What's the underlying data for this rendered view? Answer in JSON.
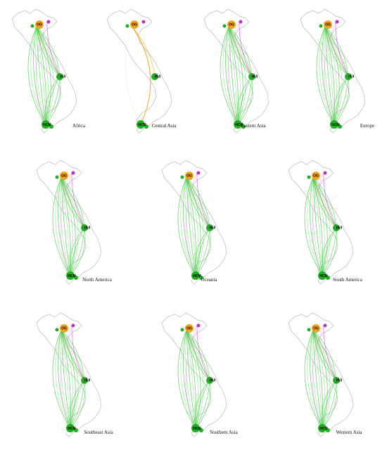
{
  "figure": {
    "panels": [
      {
        "region": "Africa",
        "style": "green"
      },
      {
        "region": "Central Asia",
        "style": "orange"
      },
      {
        "region": "Eastern Asia",
        "style": "green"
      },
      {
        "region": "Europe",
        "style": "green"
      },
      {
        "region": "North America",
        "style": "green"
      },
      {
        "region": "Oceania",
        "style": "green"
      },
      {
        "region": "South America",
        "style": "green"
      },
      {
        "region": "Southeast Asia",
        "style": "green"
      },
      {
        "region": "Southern Asia",
        "style": "green"
      },
      {
        "region": "Western Asia",
        "style": "green"
      }
    ],
    "node_labels": {
      "north": "OG",
      "central": "HUI",
      "south": "HCM"
    },
    "colors": {
      "outline": "#b8b8b8",
      "edge_green": "#2ec82e",
      "edge_green_light": "#8fe08f",
      "edge_magenta": "#e040e0",
      "edge_orange": "#f5a623",
      "edge_red": "#e05050",
      "node_green": "#1fae1f",
      "node_orange": "#f7a21b",
      "node_magenta": "#c030c0"
    }
  }
}
